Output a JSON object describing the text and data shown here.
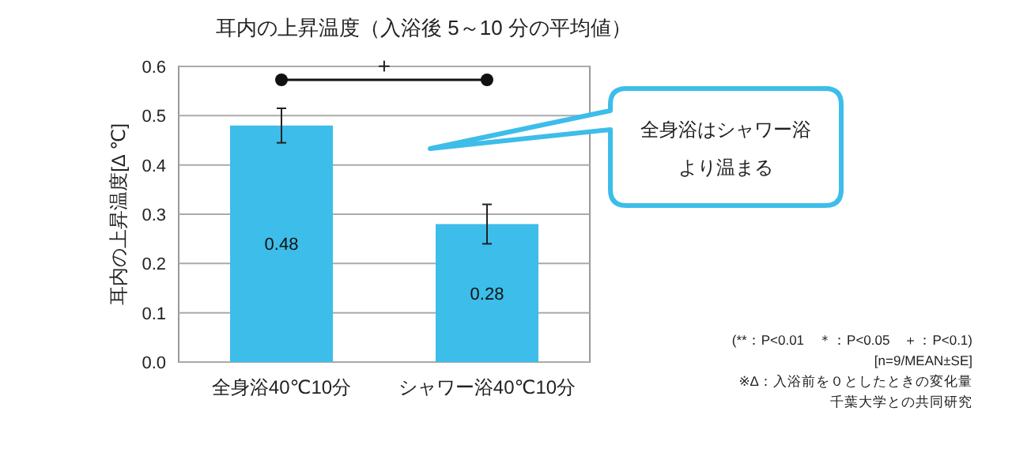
{
  "chart_data": {
    "type": "bar",
    "title": "耳内の上昇温度（入浴後 5～10 分の平均値）",
    "ylabel": "耳内の上昇温度[Δ ℃]",
    "categories": [
      "全身浴40℃10分",
      "シャワー浴40℃10分"
    ],
    "values": [
      0.48,
      0.28
    ],
    "errors": [
      0.035,
      0.04
    ],
    "color": "#3dbde9",
    "ylim": [
      0,
      0.6
    ],
    "yticks": [
      {
        "value": 0,
        "label": "0.0"
      },
      0.1,
      0.2,
      0.3,
      0.4,
      0.5,
      0.6
    ],
    "grid": "y",
    "data_labels": true,
    "annotations": [
      "+",
      "全身浴はシャワー浴",
      "より温まる",
      "(**：P<0.01　＊：P<0.05　＋：P<0.1)",
      "[n=9/MEAN±SE]",
      "※Δ：入浴前を０としたときの変化量",
      "千葉大学との共同研究"
    ]
  }
}
